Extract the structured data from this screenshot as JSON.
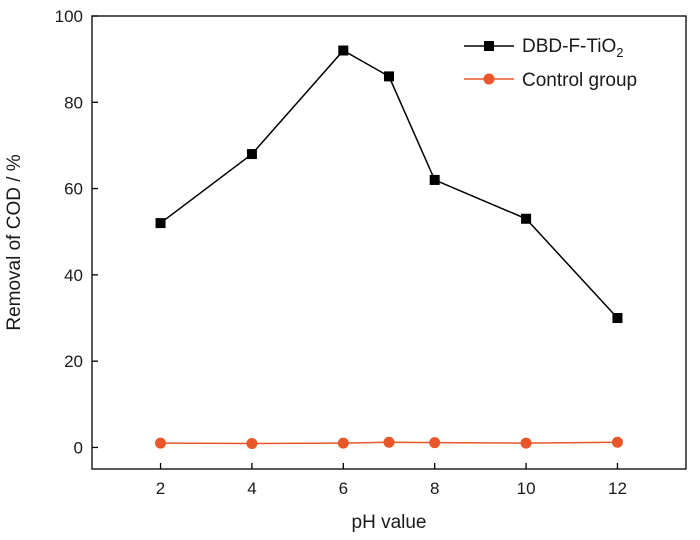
{
  "chart_data": {
    "type": "line",
    "xlabel": "pH value",
    "ylabel": "Removal of COD / %",
    "xlim": [
      0.5,
      13.5
    ],
    "ylim": [
      -5,
      100
    ],
    "xticks": [
      2,
      4,
      6,
      8,
      10,
      12
    ],
    "yticks": [
      0,
      20,
      40,
      60,
      80,
      100
    ],
    "grid": false,
    "legend_position": "top-right",
    "series": [
      {
        "name": "DBD-F-TiO",
        "name_subscript": "2",
        "marker": "square",
        "color": "#000000",
        "x": [
          2,
          4,
          6,
          7,
          8,
          10,
          12
        ],
        "y": [
          52,
          68,
          92,
          86,
          62,
          53,
          30
        ]
      },
      {
        "name": "Control group",
        "marker": "circle",
        "color": "#e8562a",
        "x": [
          2,
          4,
          6,
          7,
          8,
          10,
          12
        ],
        "y": [
          1,
          0.9,
          1,
          1.2,
          1.1,
          1,
          1.2
        ]
      }
    ]
  }
}
